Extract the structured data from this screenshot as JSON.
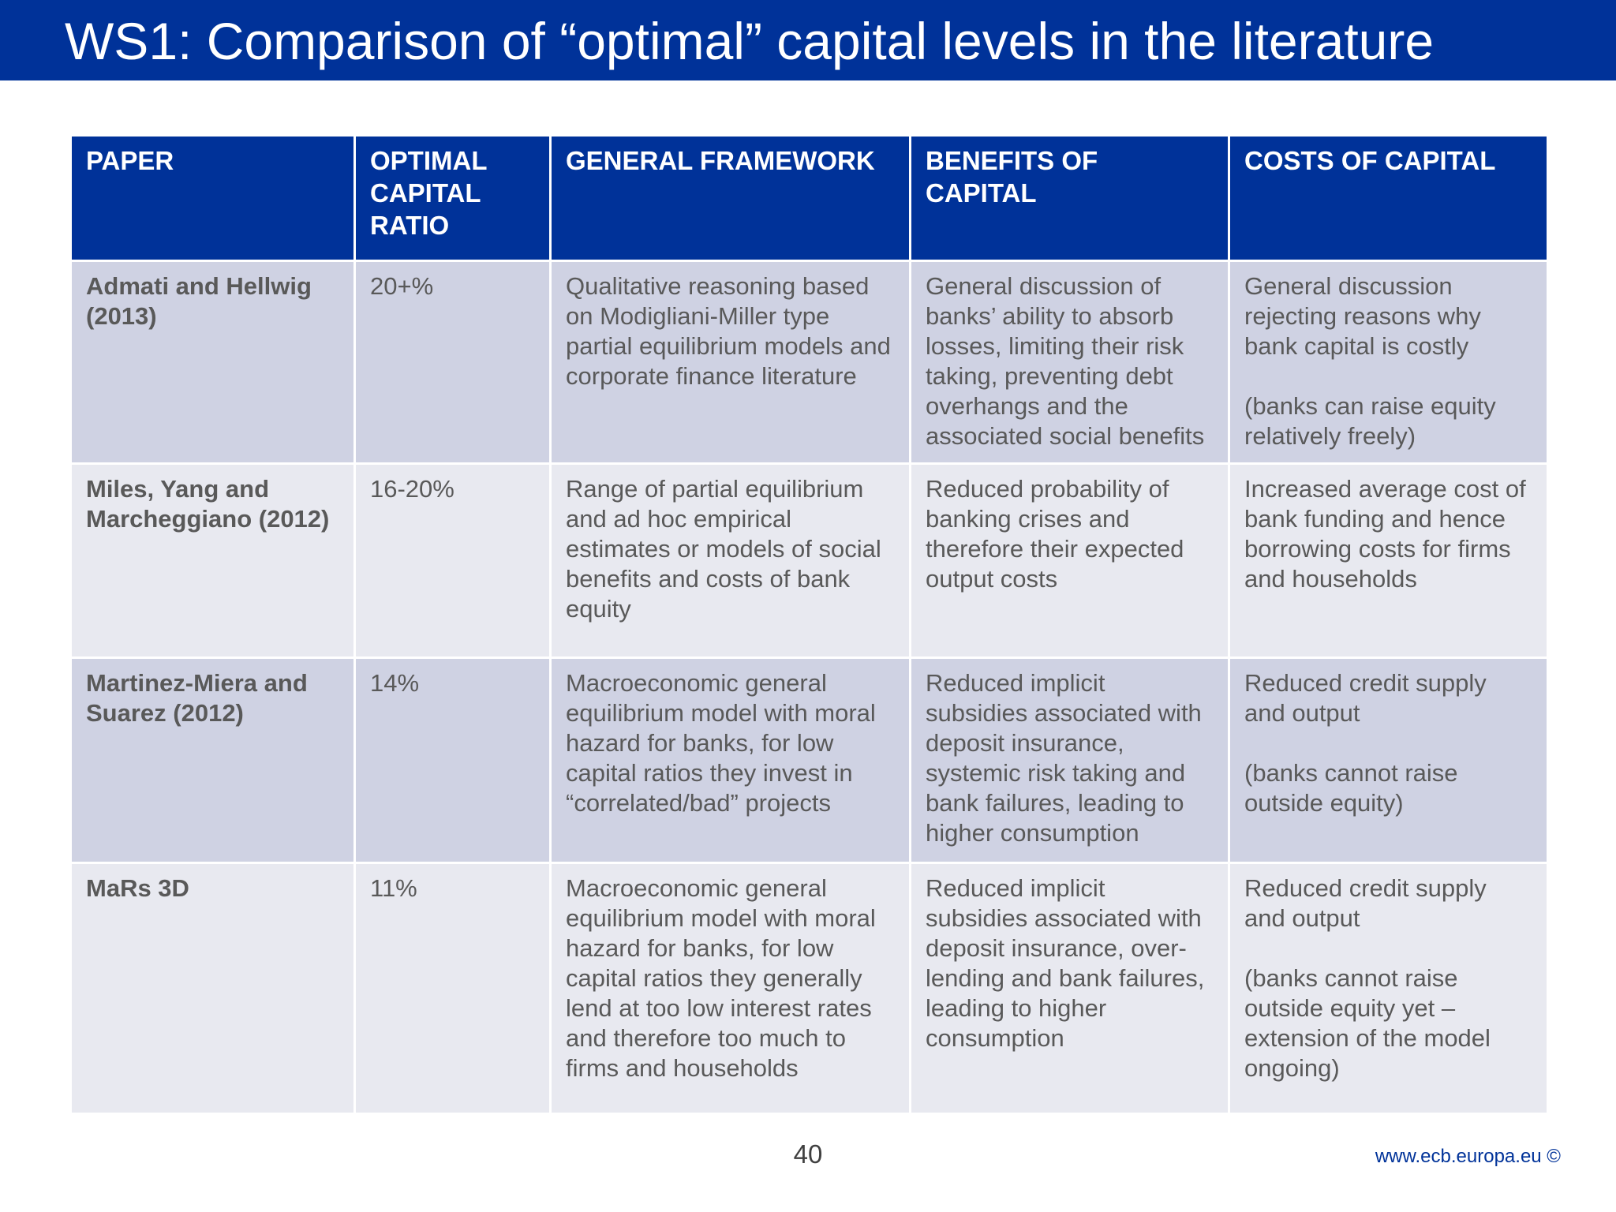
{
  "title": "WS1: Comparison of “optimal” capital levels in the literature",
  "table": {
    "headers": [
      "PAPER",
      "OPTIMAL CAPITAL RATIO",
      "GENERAL FRAMEWORK",
      "BENEFITS OF CAPITAL",
      "COSTS OF CAPITAL"
    ],
    "rows": [
      {
        "paper": "Admati and Hellwig (2013)",
        "ratio": "20+%",
        "framework": "Qualitative reasoning based on Modigliani-Miller type partial equilibrium models and corporate finance literature",
        "benefits": "General discussion of banks’ ability to absorb losses, limiting their risk taking, preventing debt overhangs and the associated social benefits",
        "costs": "General discussion rejecting reasons why bank capital is costly",
        "costs_note": "(banks can raise equity relatively freely)"
      },
      {
        "paper": "Miles, Yang and Marcheggiano (2012)",
        "ratio": "16-20%",
        "framework": "Range of partial equilibrium and ad hoc empirical estimates or models of social benefits and costs of bank equity",
        "benefits": "Reduced probability of banking crises and therefore their expected output costs",
        "costs": "Increased average cost of bank funding and hence borrowing costs for firms and households",
        "costs_note": ""
      },
      {
        "paper": "Martinez-Miera and Suarez (2012)",
        "ratio": "14%",
        "framework": "Macroeconomic general equilibrium model with moral hazard for banks, for low capital ratios they invest in “correlated/bad” projects",
        "benefits": "Reduced implicit subsidies associated with deposit insurance, systemic risk taking and bank failures, leading to higher consumption",
        "costs": "Reduced credit supply and output",
        "costs_note": "(banks cannot raise outside equity)"
      },
      {
        "paper": "MaRs 3D",
        "ratio": "11%",
        "framework": "Macroeconomic general equilibrium model with moral hazard for banks, for low capital ratios they generally lend at too low interest rates and therefore too much to firms and households",
        "benefits": "Reduced implicit subsidies associated with deposit insurance, over-lending and bank failures, leading to higher consumption",
        "costs": "Reduced credit supply and output",
        "costs_note": "(banks cannot raise outside equity yet – extension of the model ongoing)"
      }
    ]
  },
  "footer": {
    "page_number": "40",
    "url": "www.ecb.europa.eu ©"
  },
  "colors": {
    "brand_blue": "#003299",
    "row_dark": "#cfd2e3",
    "row_light": "#e8e9f0",
    "text_gray": "#595959"
  }
}
